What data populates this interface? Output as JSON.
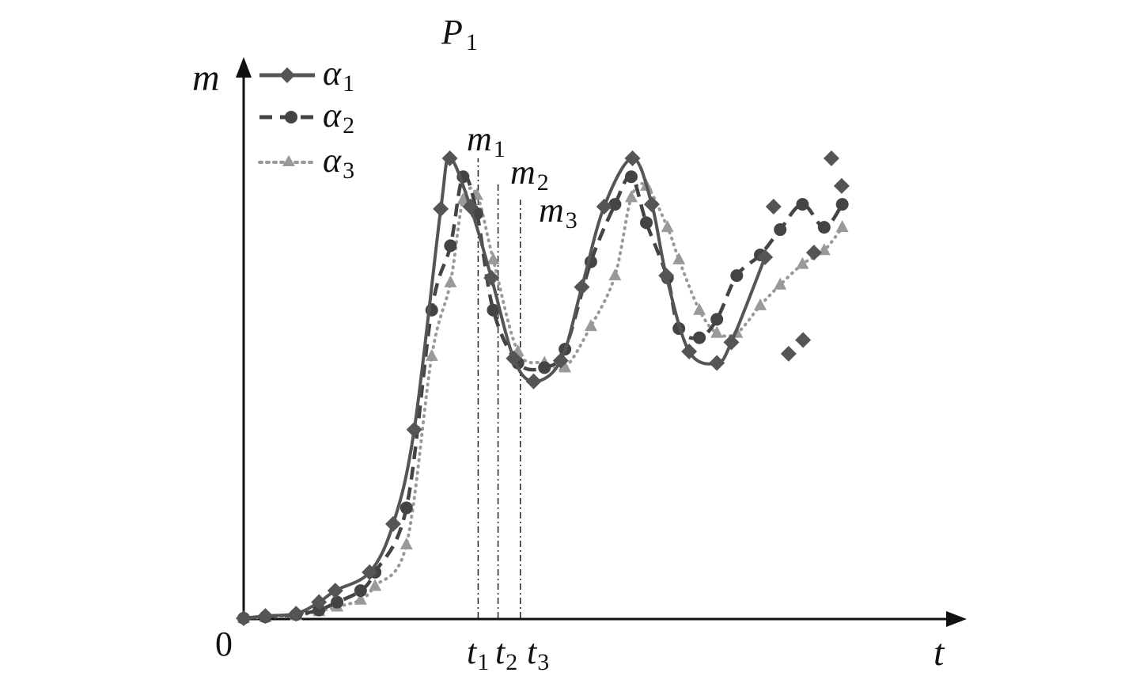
{
  "chart_data": {
    "type": "line",
    "title": "P",
    "title_sub": "1",
    "xlabel": "t",
    "ylabel": "m",
    "origin_label": "0",
    "xlim": [
      0,
      1
    ],
    "ylim": [
      0,
      1
    ],
    "grid": false,
    "legend_position": "top-left",
    "series": [
      {
        "name": "α",
        "name_sub": "1",
        "line": "solid",
        "marker": "diamond",
        "color": "#555555",
        "x": [
          0.0,
          0.036,
          0.087,
          0.125,
          0.152,
          0.209,
          0.248,
          0.283,
          0.327,
          0.342,
          0.376,
          0.411,
          0.448,
          0.481,
          0.526,
          0.561,
          0.598,
          0.645,
          0.677,
          0.701,
          0.739,
          0.785,
          0.809,
          0.865
        ],
        "y": [
          0.0,
          0.005,
          0.01,
          0.035,
          0.06,
          0.1,
          0.205,
          0.41,
          0.89,
          1.0,
          0.895,
          0.74,
          0.565,
          0.515,
          0.56,
          0.72,
          0.895,
          1.0,
          0.9,
          0.745,
          0.58,
          0.555,
          0.6,
          0.785
        ],
        "points_x": [
          0.0,
          0.036,
          0.087,
          0.125,
          0.152,
          0.209,
          0.248,
          0.283,
          0.327,
          0.342,
          0.376,
          0.411,
          0.448,
          0.481,
          0.526,
          0.561,
          0.598,
          0.645,
          0.677,
          0.701,
          0.739,
          0.785,
          0.809,
          0.865,
          0.879,
          0.904,
          0.928,
          0.946,
          0.975,
          0.992
        ],
        "points_y": [
          0.0,
          0.005,
          0.01,
          0.035,
          0.06,
          0.1,
          0.205,
          0.41,
          0.89,
          1.0,
          0.895,
          0.74,
          0.565,
          0.515,
          0.56,
          0.72,
          0.895,
          1.0,
          0.9,
          0.745,
          0.58,
          0.555,
          0.6,
          0.785,
          0.895,
          0.575,
          0.605,
          0.795,
          1.0,
          0.94
        ]
      },
      {
        "name": "α",
        "name_sub": "2",
        "line": "dashed",
        "marker": "circle",
        "color": "#444444",
        "points_x": [
          0.0,
          0.036,
          0.087,
          0.125,
          0.155,
          0.194,
          0.218,
          0.27,
          0.312,
          0.343,
          0.364,
          0.387,
          0.414,
          0.455,
          0.499,
          0.533,
          0.576,
          0.616,
          0.643,
          0.668,
          0.703,
          0.722,
          0.756,
          0.785,
          0.818,
          0.857,
          0.89,
          0.927,
          0.963,
          0.993
        ],
        "points_y": [
          0.0,
          0.003,
          0.008,
          0.018,
          0.035,
          0.06,
          0.1,
          0.24,
          0.67,
          0.81,
          0.96,
          0.88,
          0.67,
          0.555,
          0.545,
          0.585,
          0.775,
          0.9,
          0.96,
          0.86,
          0.74,
          0.63,
          0.61,
          0.65,
          0.745,
          0.79,
          0.845,
          0.9,
          0.85,
          0.9
        ]
      },
      {
        "name": "α",
        "name_sub": "3",
        "line": "dotted",
        "marker": "triangle",
        "color": "#999999",
        "points_x": [
          0.0,
          0.036,
          0.087,
          0.125,
          0.155,
          0.194,
          0.218,
          0.27,
          0.312,
          0.343,
          0.364,
          0.387,
          0.414,
          0.455,
          0.499,
          0.533,
          0.576,
          0.616,
          0.643,
          0.668,
          0.703,
          0.722,
          0.756,
          0.785,
          0.818,
          0.857,
          0.89,
          0.927,
          0.963,
          0.993
        ],
        "points_y": [
          0.0,
          0.002,
          0.006,
          0.015,
          0.025,
          0.04,
          0.07,
          0.16,
          0.57,
          0.73,
          0.91,
          0.92,
          0.78,
          0.58,
          0.555,
          0.545,
          0.635,
          0.745,
          0.915,
          0.94,
          0.85,
          0.78,
          0.67,
          0.62,
          0.62,
          0.68,
          0.725,
          0.77,
          0.8,
          0.85
        ]
      }
    ],
    "peaks": [
      {
        "label": "m",
        "sub": "1",
        "t_label": "t",
        "t_sub": "1"
      },
      {
        "label": "m",
        "sub": "2",
        "t_label": "t",
        "t_sub": "2"
      },
      {
        "label": "m",
        "sub": "3",
        "t_label": "t",
        "t_sub": "3"
      }
    ],
    "peak_t": [
      0.389,
      0.422,
      0.459
    ]
  }
}
